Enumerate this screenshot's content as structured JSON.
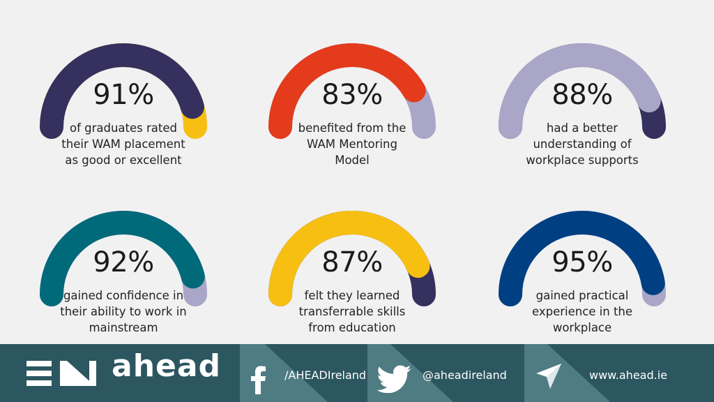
{
  "chart_data": {
    "type": "gauge",
    "max": 100,
    "items": [
      {
        "value": 91,
        "label": "91%",
        "caption": "of graduates rated\ntheir WAM placement\nas good or excellent",
        "fill_color": "#35305e",
        "rest_color": "#f7bf12"
      },
      {
        "value": 83,
        "label": "83%",
        "caption": "benefited from the\nWAM Mentoring\nModel",
        "fill_color": "#e33b1c",
        "rest_color": "#a9a6c8"
      },
      {
        "value": 88,
        "label": "88%",
        "caption": "had a better\nunderstanding of\nworkplace supports",
        "fill_color": "#a9a6c8",
        "rest_color": "#35305e"
      },
      {
        "value": 92,
        "label": "92%",
        "caption": "gained confidence in\ntheir ability to work in\nmainstream",
        "fill_color": "#00697a",
        "rest_color": "#a9a6c8"
      },
      {
        "value": 87,
        "label": "87%",
        "caption": "felt they learned\ntransferrable skills\nfrom education",
        "fill_color": "#f7bf12",
        "rest_color": "#35305e"
      },
      {
        "value": 95,
        "label": "95%",
        "caption": "gained practical\nexperience in the\nworkplace",
        "fill_color": "#003f82",
        "rest_color": "#a9a6c8"
      }
    ]
  },
  "footer": {
    "logo_text": "ahead",
    "facebook": "/AHEADIreland",
    "twitter": "@aheadireland",
    "website": "www.ahead.ie"
  },
  "colors": {
    "footer_bg": "#2c5660",
    "footer_accent": "#6d9aa0",
    "white": "#ffffff"
  }
}
